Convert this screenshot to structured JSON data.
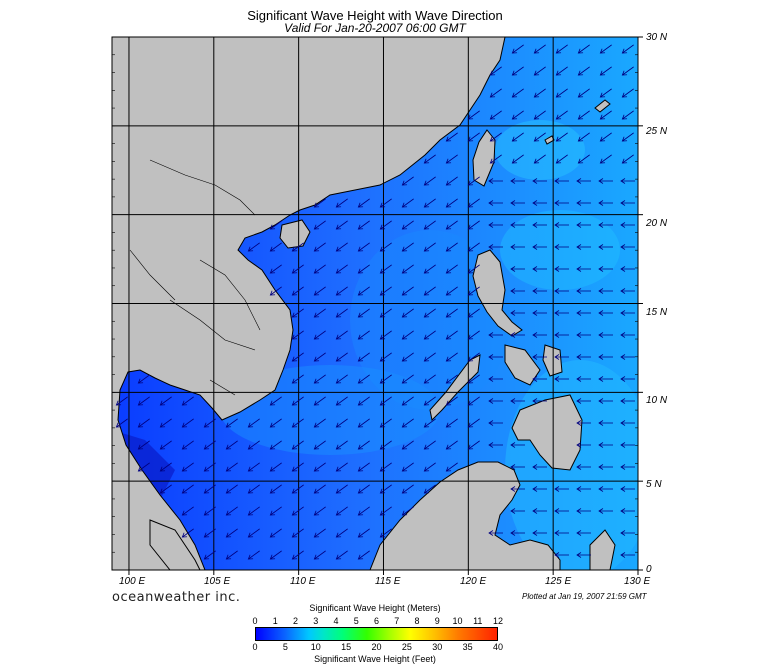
{
  "title": "Significant Wave Height with Wave Direction",
  "subtitle": "Valid For Jan-20-2007 06:00 GMT",
  "brand": "oceanweather inc.",
  "plotted": "Plotted at Jan 19, 2007 21:59 GMT",
  "colorbar": {
    "meters_title": "Significant Wave Height (Meters)",
    "feet_title": "Significant Wave Height (Feet)",
    "meters_ticks": [
      "0",
      "1",
      "2",
      "3",
      "4",
      "5",
      "6",
      "7",
      "8",
      "9",
      "10",
      "11",
      "12"
    ],
    "feet_ticks": [
      "0",
      "5",
      "10",
      "15",
      "20",
      "25",
      "30",
      "35",
      "40"
    ]
  },
  "axes": {
    "lon_labels": [
      "100 E",
      "105 E",
      "110 E",
      "115 E",
      "120 E",
      "125 E",
      "130 E"
    ],
    "lat_labels": [
      "30 N",
      "25 N",
      "20 N",
      "15 N",
      "10 N",
      "5 N",
      "0"
    ],
    "lon_range": [
      99,
      130
    ],
    "lat_range": [
      0,
      30
    ]
  },
  "colors": {
    "land": "#c0c0c0",
    "ocean_low": "#0a3cff",
    "ocean_mid": "#1e78ff",
    "ocean_high": "#12c8ff",
    "arrow": "#000080"
  }
}
